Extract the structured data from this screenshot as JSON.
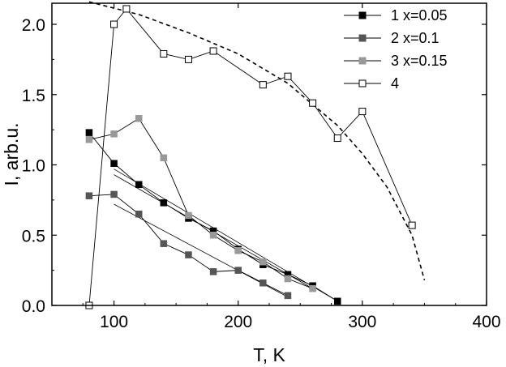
{
  "chart_data": {
    "type": "scatter",
    "title": "",
    "xlabel": "T, K",
    "ylabel": "I, arb.u.",
    "xlim": [
      50,
      400
    ],
    "ylim": [
      0,
      2.15
    ],
    "xticks": [
      100,
      200,
      300,
      400
    ],
    "yticks": [
      0.0,
      0.5,
      1.0,
      1.5,
      2.0
    ],
    "xtick_labels": [
      "100",
      "200",
      "300",
      "400"
    ],
    "ytick_labels": [
      "0.0",
      "0.5",
      "1.0",
      "1.5",
      "2.0"
    ],
    "grid": false,
    "legend_position": "top-right",
    "series": [
      {
        "name": "1 x=0.05",
        "marker": "filled-square",
        "color": "#000000",
        "x": [
          80,
          100,
          120,
          140,
          160,
          180,
          200,
          220,
          240,
          260,
          280
        ],
        "y": [
          1.23,
          1.01,
          0.86,
          0.73,
          0.62,
          0.53,
          0.4,
          0.29,
          0.22,
          0.14,
          0.03
        ]
      },
      {
        "name": "2 x=0.1",
        "marker": "filled-square",
        "color": "#555555",
        "x": [
          80,
          100,
          120,
          140,
          160,
          180,
          200,
          220,
          240
        ],
        "y": [
          0.78,
          0.79,
          0.65,
          0.44,
          0.36,
          0.24,
          0.25,
          0.16,
          0.07
        ]
      },
      {
        "name": "3 x=0.15",
        "marker": "filled-square",
        "color": "#999999",
        "x": [
          80,
          100,
          120,
          140,
          160,
          180,
          200,
          220,
          240,
          260
        ],
        "y": [
          1.18,
          1.22,
          1.33,
          1.05,
          0.64,
          0.5,
          0.39,
          0.31,
          0.19,
          0.12
        ]
      },
      {
        "name": "4",
        "marker": "open-square",
        "color": "#000000",
        "x": [
          80,
          100,
          110,
          140,
          160,
          180,
          220,
          240,
          260,
          280,
          300,
          340
        ],
        "y": [
          0.0,
          2.0,
          2.11,
          1.79,
          1.75,
          1.81,
          1.57,
          1.63,
          1.44,
          1.19,
          1.38,
          0.57
        ]
      }
    ],
    "fit_lines": [
      {
        "x": [
          100,
          280
        ],
        "y": [
          0.97,
          0.03
        ]
      },
      {
        "x": [
          100,
          260
        ],
        "y": [
          0.93,
          0.12
        ]
      },
      {
        "x": [
          100,
          240
        ],
        "y": [
          0.72,
          0.06
        ]
      }
    ],
    "dashed_curve": {
      "x": [
        80,
        120,
        160,
        200,
        240,
        280,
        300,
        320,
        340,
        350
      ],
      "y": [
        2.16,
        2.07,
        1.94,
        1.79,
        1.58,
        1.28,
        1.08,
        0.84,
        0.5,
        0.18
      ]
    }
  }
}
